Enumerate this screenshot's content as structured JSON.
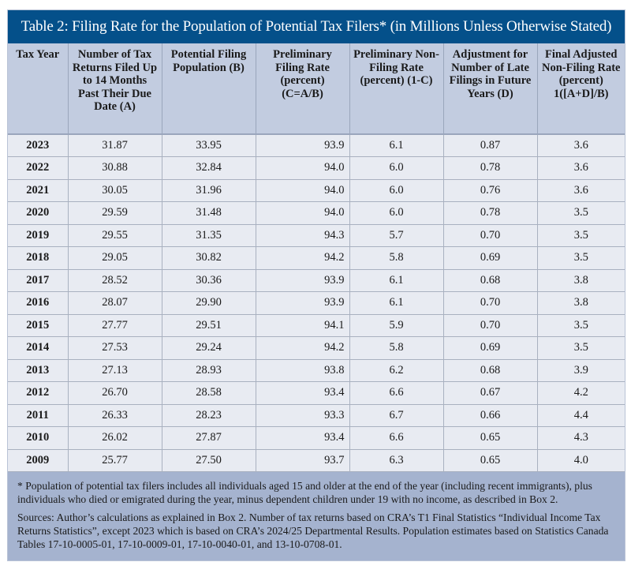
{
  "title": "Table 2: Filing Rate for the Population of Potential Tax Filers* (in Millions Unless Otherwise Stated)",
  "columns": [
    "Tax Year",
    "Number of Tax Returns Filed Up to 14 Months Past Their Due Date (A)",
    "Potential Filing Population (B)",
    "Preliminary Filing Rate (percent) (C=A/B)",
    "Preliminary Non-Filing Rate (percent) (1-C)",
    "Adjustment for Number of Late Filings in Future Years (D)",
    "Final Adjusted Non-Filing Rate (percent) 1([A+D]/B)"
  ],
  "rows": [
    [
      "2023",
      "31.87",
      "33.95",
      "93.9",
      "6.1",
      "0.87",
      "3.6"
    ],
    [
      "2022",
      "30.88",
      "32.84",
      "94.0",
      "6.0",
      "0.78",
      "3.6"
    ],
    [
      "2021",
      "30.05",
      "31.96",
      "94.0",
      "6.0",
      "0.76",
      "3.6"
    ],
    [
      "2020",
      "29.59",
      "31.48",
      "94.0",
      "6.0",
      "0.78",
      "3.5"
    ],
    [
      "2019",
      "29.55",
      "31.35",
      "94.3",
      "5.7",
      "0.70",
      "3.5"
    ],
    [
      "2018",
      "29.05",
      "30.82",
      "94.2",
      "5.8",
      "0.69",
      "3.5"
    ],
    [
      "2017",
      "28.52",
      "30.36",
      "93.9",
      "6.1",
      "0.68",
      "3.8"
    ],
    [
      "2016",
      "28.07",
      "29.90",
      "93.9",
      "6.1",
      "0.70",
      "3.8"
    ],
    [
      "2015",
      "27.77",
      "29.51",
      "94.1",
      "5.9",
      "0.70",
      "3.5"
    ],
    [
      "2014",
      "27.53",
      "29.24",
      "94.2",
      "5.8",
      "0.69",
      "3.5"
    ],
    [
      "2013",
      "27.13",
      "28.93",
      "93.8",
      "6.2",
      "0.68",
      "3.9"
    ],
    [
      "2012",
      "26.70",
      "28.58",
      "93.4",
      "6.6",
      "0.67",
      "4.2"
    ],
    [
      "2011",
      "26.33",
      "28.23",
      "93.3",
      "6.7",
      "0.66",
      "4.4"
    ],
    [
      "2010",
      "26.02",
      "27.87",
      "93.4",
      "6.6",
      "0.65",
      "4.3"
    ],
    [
      "2009",
      "25.77",
      "27.50",
      "93.7",
      "6.3",
      "0.65",
      "4.0"
    ]
  ],
  "footnotes": {
    "note": "* Population of potential tax filers includes all individuals aged 15 and older at the end of the year (including recent immigrants), plus individuals who died or emigrated during the year, minus dependent children under 19 with no income, as described in Box 2.",
    "sources": "Sources: Author’s calculations as explained in Box 2. Number of tax returns based on CRA’s T1 Final Statistics “Individual Income Tax Returns Statistics”, except 2023 which is based on CRA’s 2024/25 Departmental Results. Population estimates based on Statistics Canada Tables 17-10-0005-01, 17-10-0009-01, 17-10-0040-01, and 13-10-0708-01."
  },
  "colors": {
    "title_bg": "#04508a",
    "header_bg": "#c2cce0",
    "cell_bg": "#e8ebf2",
    "footer_bg": "#a5b3cf"
  }
}
